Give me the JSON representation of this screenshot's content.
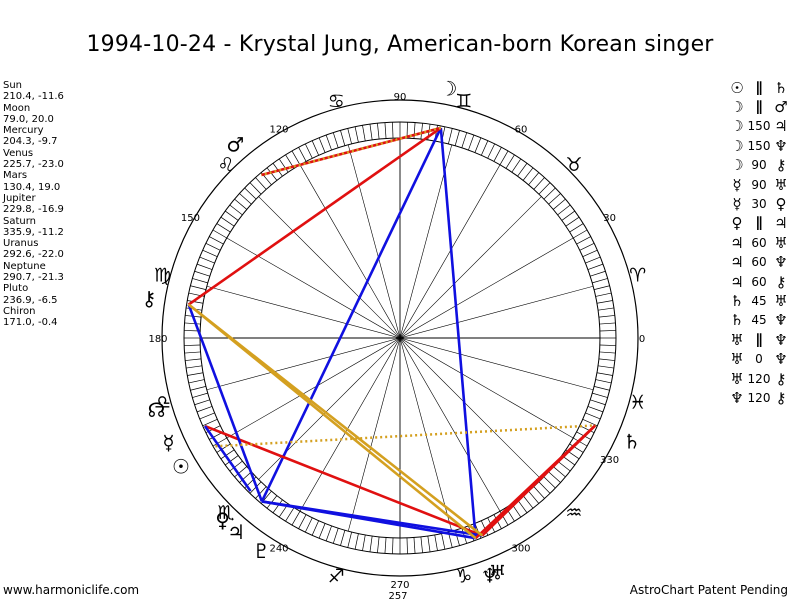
{
  "title": "1994-10-24 - Krystal Jung, American-born Korean singer",
  "footer": {
    "left": "www.harmoniclife.com",
    "right": "AstroChart Patent Pending"
  },
  "positions": [
    {
      "name": "Sun",
      "value": "210.4, -11.6"
    },
    {
      "name": "Moon",
      "value": "79.0, 20.0"
    },
    {
      "name": "Mercury",
      "value": "204.3, -9.7"
    },
    {
      "name": "Venus",
      "value": "225.7, -23.0"
    },
    {
      "name": "Mars",
      "value": "130.4, 19.0"
    },
    {
      "name": "Jupiter",
      "value": "229.8, -16.9"
    },
    {
      "name": "Saturn",
      "value": "335.9, -11.2"
    },
    {
      "name": "Uranus",
      "value": "292.6, -22.0"
    },
    {
      "name": "Neptune",
      "value": "290.7, -21.3"
    },
    {
      "name": "Pluto",
      "value": "236.9, -6.5"
    },
    {
      "name": "Chiron",
      "value": "171.0, -0.4"
    }
  ],
  "aspects": [
    {
      "a": "☉",
      "type": "∥",
      "b": "♄"
    },
    {
      "a": "☽",
      "type": "∥",
      "b": "♂"
    },
    {
      "a": "☽",
      "type": "150",
      "b": "♃"
    },
    {
      "a": "☽",
      "type": "150",
      "b": "♆"
    },
    {
      "a": "☽",
      "type": "90",
      "b": "⚷"
    },
    {
      "a": "☿",
      "type": "90",
      "b": "♅"
    },
    {
      "a": "☿",
      "type": "30",
      "b": "♀"
    },
    {
      "a": "♀",
      "type": "∥",
      "b": "♃"
    },
    {
      "a": "♃",
      "type": "60",
      "b": "♅"
    },
    {
      "a": "♃",
      "type": "60",
      "b": "♆"
    },
    {
      "a": "♃",
      "type": "60",
      "b": "⚷"
    },
    {
      "a": "♄",
      "type": "45",
      "b": "♅"
    },
    {
      "a": "♄",
      "type": "45",
      "b": "♆"
    },
    {
      "a": "♅",
      "type": "∥",
      "b": "♆"
    },
    {
      "a": "♅",
      "type": "0",
      "b": "♆"
    },
    {
      "a": "♅",
      "type": "120",
      "b": "⚷"
    },
    {
      "a": "♆",
      "type": "120",
      "b": "⚷"
    }
  ],
  "wheel": {
    "degree_labels": [
      {
        "deg": 0,
        "text": "0"
      },
      {
        "deg": 30,
        "text": "30"
      },
      {
        "deg": 60,
        "text": "60"
      },
      {
        "deg": 90,
        "text": "90"
      },
      {
        "deg": 120,
        "text": "120"
      },
      {
        "deg": 150,
        "text": "150"
      },
      {
        "deg": 180,
        "text": "180"
      },
      {
        "deg": 240,
        "text": "240"
      },
      {
        "deg": 257,
        "text": "257"
      },
      {
        "deg": 270,
        "text": "270"
      },
      {
        "deg": 300,
        "text": "300"
      },
      {
        "deg": 330,
        "text": "330"
      }
    ],
    "signs": [
      {
        "deg": 15,
        "glyph": "♈"
      },
      {
        "deg": 45,
        "glyph": "♉"
      },
      {
        "deg": 75,
        "glyph": "♊"
      },
      {
        "deg": 105,
        "glyph": "♋"
      },
      {
        "deg": 135,
        "glyph": "♌"
      },
      {
        "deg": 165,
        "glyph": "♍"
      },
      {
        "deg": 195,
        "glyph": "♎"
      },
      {
        "deg": 225,
        "glyph": "♏"
      },
      {
        "deg": 255,
        "glyph": "♐"
      },
      {
        "deg": 285,
        "glyph": "♑"
      },
      {
        "deg": 315,
        "glyph": "♒"
      },
      {
        "deg": 345,
        "glyph": "♓"
      }
    ],
    "planets": [
      {
        "id": "sun",
        "deg": 210.4,
        "glyph": "☉"
      },
      {
        "id": "moon",
        "deg": 79.0,
        "glyph": "☽"
      },
      {
        "id": "mercury",
        "deg": 204.3,
        "glyph": "☿"
      },
      {
        "id": "venus",
        "deg": 225.7,
        "glyph": "♀"
      },
      {
        "id": "mars",
        "deg": 130.4,
        "glyph": "♂"
      },
      {
        "id": "jupiter",
        "deg": 229.8,
        "glyph": "♃"
      },
      {
        "id": "saturn",
        "deg": 335.9,
        "glyph": "♄"
      },
      {
        "id": "uranus",
        "deg": 292.6,
        "glyph": "♅"
      },
      {
        "id": "neptune",
        "deg": 290.7,
        "glyph": "♆"
      },
      {
        "id": "pluto",
        "deg": 236.9,
        "glyph": "♇"
      },
      {
        "id": "chiron",
        "deg": 171.0,
        "glyph": "⚷"
      },
      {
        "id": "node",
        "deg": 196.5,
        "glyph": "☊"
      }
    ],
    "aspect_lines": [
      {
        "from": "moon",
        "to": "mars",
        "color": "#e01010",
        "style": "solid"
      },
      {
        "from": "moon",
        "to": "jupiter",
        "color": "#1010e0",
        "style": "solid"
      },
      {
        "from": "moon",
        "to": "neptune",
        "color": "#1010e0",
        "style": "solid"
      },
      {
        "from": "moon",
        "to": "chiron",
        "color": "#e01010",
        "style": "solid"
      },
      {
        "from": "mercury",
        "to": "uranus",
        "color": "#e01010",
        "style": "solid"
      },
      {
        "from": "mercury",
        "to": "venus",
        "color": "#1010e0",
        "style": "solid"
      },
      {
        "from": "jupiter",
        "to": "uranus",
        "color": "#1010e0",
        "style": "solid"
      },
      {
        "from": "jupiter",
        "to": "neptune",
        "color": "#1010e0",
        "style": "solid"
      },
      {
        "from": "jupiter",
        "to": "chiron",
        "color": "#1010e0",
        "style": "solid"
      },
      {
        "from": "saturn",
        "to": "uranus",
        "color": "#e01010",
        "style": "solid"
      },
      {
        "from": "saturn",
        "to": "neptune",
        "color": "#e01010",
        "style": "solid"
      },
      {
        "from": "uranus",
        "to": "chiron",
        "color": "#d4a020",
        "style": "solid"
      },
      {
        "from": "neptune",
        "to": "chiron",
        "color": "#d4a020",
        "style": "solid"
      },
      {
        "from": "moon",
        "to": "mars",
        "color": "#d4a020",
        "style": "dotted"
      },
      {
        "from": "sun",
        "to": "saturn",
        "color": "#d4a020",
        "style": "dotted"
      }
    ]
  }
}
